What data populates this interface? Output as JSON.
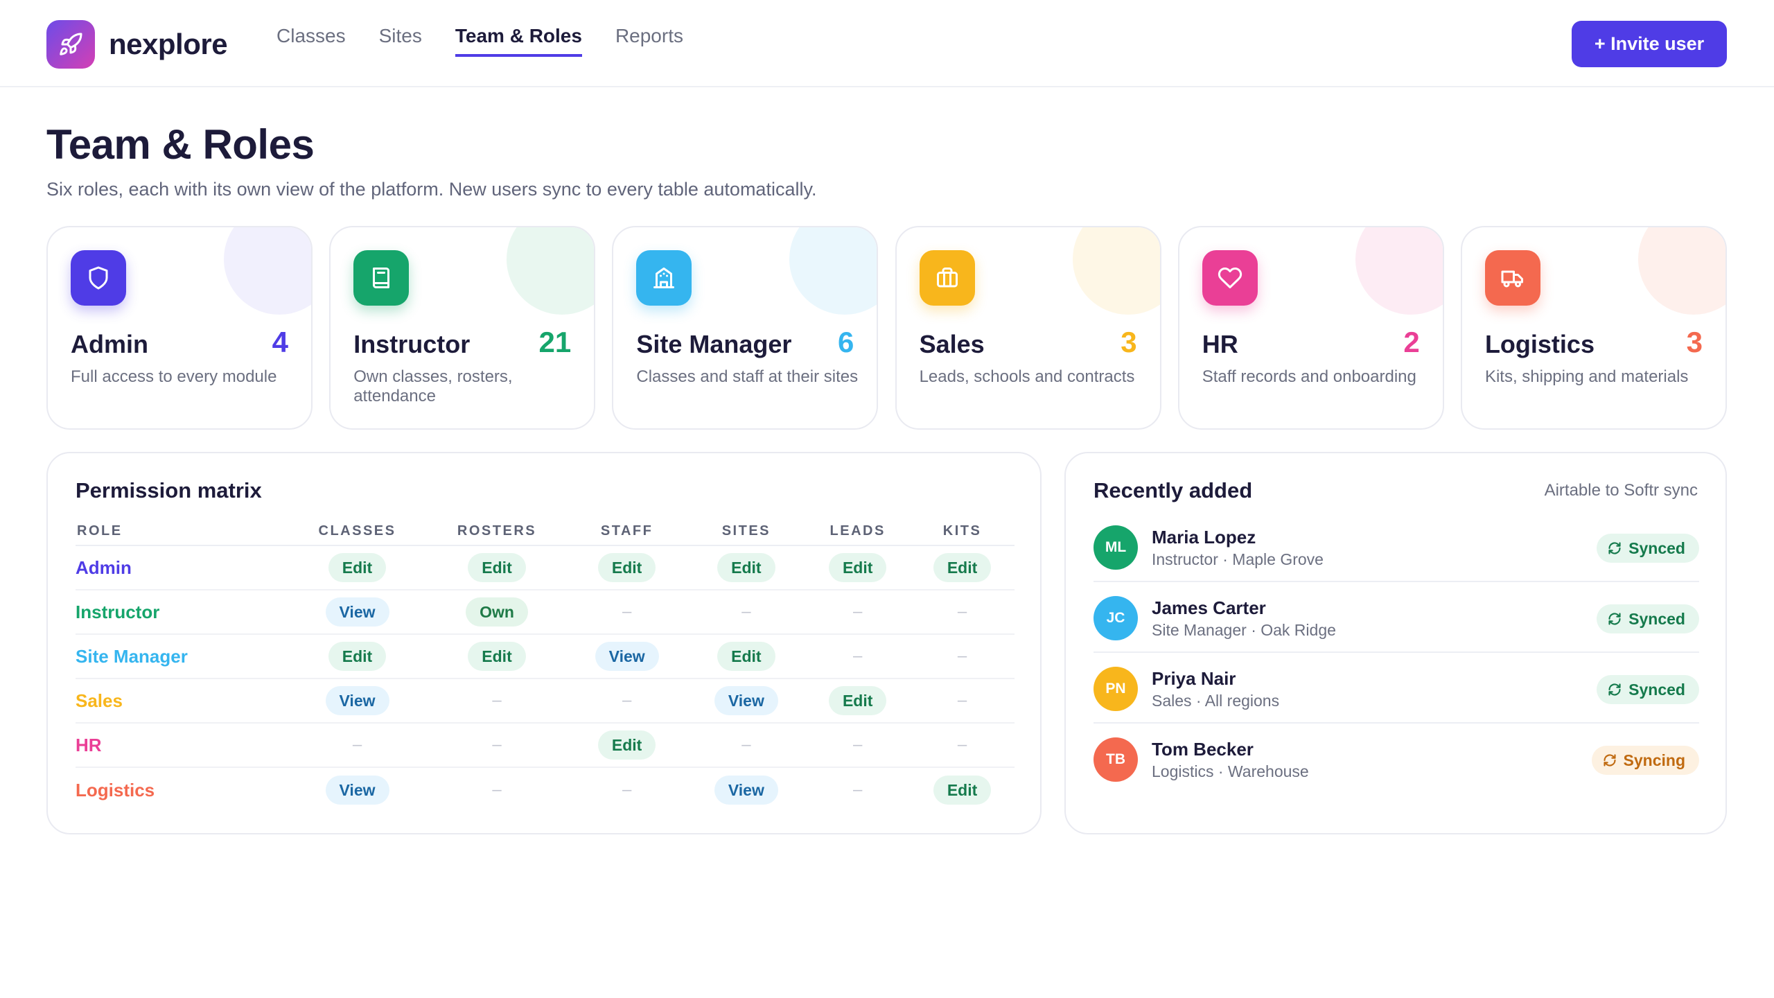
{
  "header": {
    "brand": "nexplore",
    "nav": [
      {
        "label": "Classes",
        "active": false
      },
      {
        "label": "Sites",
        "active": false
      },
      {
        "label": "Team & Roles",
        "active": true
      },
      {
        "label": "Reports",
        "active": false
      }
    ],
    "invite_label": "+ Invite user"
  },
  "page": {
    "title": "Team & Roles",
    "subtitle": "Six roles, each with its own view of the platform. New users sync to every table automatically."
  },
  "roles": [
    {
      "name": "Admin",
      "count": "4",
      "description": "Full access to every module",
      "icon": "shield-icon",
      "color": "#4f3ce6",
      "tint": "#f1f0fd"
    },
    {
      "name": "Instructor",
      "count": "21",
      "description": "Own classes, rosters, attendance",
      "icon": "book-icon",
      "color": "#16a56b",
      "tint": "#e9f7f0"
    },
    {
      "name": "Site Manager",
      "count": "6",
      "description": "Classes and staff at their sites",
      "icon": "building-icon",
      "color": "#35b5ef",
      "tint": "#eaf7fd"
    },
    {
      "name": "Sales",
      "count": "3",
      "description": "Leads, schools and contracts",
      "icon": "briefcase-icon",
      "color": "#f8b61c",
      "tint": "#fef7e6"
    },
    {
      "name": "HR",
      "count": "2",
      "description": "Staff records and onboarding",
      "icon": "heart-icon",
      "color": "#ea3f96",
      "tint": "#fdecf4"
    },
    {
      "name": "Logistics",
      "count": "3",
      "description": "Kits, shipping and materials",
      "icon": "truck-icon",
      "color": "#f4694f",
      "tint": "#fef0ec"
    }
  ],
  "matrix": {
    "title": "Permission matrix",
    "columns": [
      "ROLE",
      "CLASSES",
      "ROSTERS",
      "STAFF",
      "SITES",
      "LEADS",
      "KITS"
    ],
    "rows": [
      {
        "role": "Admin",
        "color": "#4f3ce6",
        "cells": [
          "Edit",
          "Edit",
          "Edit",
          "Edit",
          "Edit",
          "Edit"
        ]
      },
      {
        "role": "Instructor",
        "color": "#16a56b",
        "cells": [
          "View",
          "Own",
          "–",
          "–",
          "–",
          "–"
        ]
      },
      {
        "role": "Site Manager",
        "color": "#35b5ef",
        "cells": [
          "Edit",
          "Edit",
          "View",
          "Edit",
          "–",
          "–"
        ]
      },
      {
        "role": "Sales",
        "color": "#f8b61c",
        "cells": [
          "View",
          "–",
          "–",
          "View",
          "Edit",
          "–"
        ]
      },
      {
        "role": "HR",
        "color": "#ea3f96",
        "cells": [
          "–",
          "–",
          "Edit",
          "–",
          "–",
          "–"
        ]
      },
      {
        "role": "Logistics",
        "color": "#f4694f",
        "cells": [
          "View",
          "–",
          "–",
          "View",
          "–",
          "Edit"
        ]
      }
    ]
  },
  "recent": {
    "title": "Recently added",
    "meta": "Airtable to Softr sync",
    "items": [
      {
        "initials": "ML",
        "name": "Maria Lopez",
        "sub": "Instructor · Maple Grove",
        "status": "Synced",
        "avatar_color": "#16a56b"
      },
      {
        "initials": "JC",
        "name": "James Carter",
        "sub": "Site Manager · Oak Ridge",
        "status": "Synced",
        "avatar_color": "#35b5ef"
      },
      {
        "initials": "PN",
        "name": "Priya Nair",
        "sub": "Sales · All regions",
        "status": "Synced",
        "avatar_color": "#f8b61c"
      },
      {
        "initials": "TB",
        "name": "Tom Becker",
        "sub": "Logistics · Warehouse",
        "status": "Syncing",
        "avatar_color": "#f4694f"
      }
    ]
  }
}
